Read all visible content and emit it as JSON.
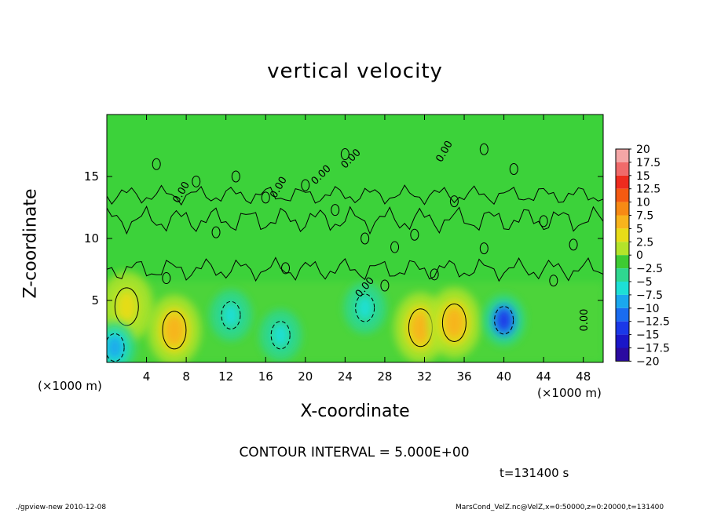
{
  "chart_data": {
    "type": "heatmap",
    "title": "vertical velocity",
    "xlabel": "X-coordinate",
    "ylabel": "Z-coordinate",
    "x_unit": "(×1000 m)",
    "xlim": [
      0,
      50
    ],
    "ylim": [
      0,
      20
    ],
    "xticks": [
      4,
      8,
      12,
      16,
      20,
      24,
      28,
      32,
      36,
      40,
      44,
      48
    ],
    "yticks": [
      5,
      10,
      15
    ],
    "colorbar": {
      "levels": [
        "20",
        "17.5",
        "15",
        "12.5",
        "10",
        "7.5",
        "5",
        "2.5",
        "0",
        "−2.5",
        "−5",
        "−7.5",
        "−10",
        "−12.5",
        "−15",
        "−17.5",
        "−20"
      ],
      "colors": [
        "#f4a6a6",
        "#f06a6a",
        "#ee2b1e",
        "#f45a12",
        "#f78a14",
        "#f8b41c",
        "#e8dc18",
        "#b4e42a",
        "#3ecb33",
        "#2fd790",
        "#1de0d6",
        "#1aa8ee",
        "#1a6cf0",
        "#1a38e8",
        "#1a16c8",
        "#2a0aa0",
        "#6a16a8"
      ]
    },
    "contour_interval": "CONTOUR INTERVAL = 5.000E+00",
    "contour_label": "0.00",
    "features": [
      {
        "x": 2.0,
        "z": 4.5,
        "w": 5.0
      },
      {
        "x": 6.8,
        "z": 2.6,
        "w": 7.5
      },
      {
        "x": 12.5,
        "z": 3.8,
        "w": -5.0
      },
      {
        "x": 17.5,
        "z": 2.2,
        "w": -5.0
      },
      {
        "x": 26.0,
        "z": 4.4,
        "w": -5.0
      },
      {
        "x": 31.6,
        "z": 2.8,
        "w": 8.0
      },
      {
        "x": 35.0,
        "z": 3.2,
        "w": 7.0
      },
      {
        "x": 40.0,
        "z": 3.4,
        "w": -12.0
      },
      {
        "x": 0.8,
        "z": 1.2,
        "w": -7.0
      }
    ]
  },
  "x_unit_right": "(×1000 m)",
  "time": "t=131400 s",
  "footer_left": "./gpview-new  2010-12-08",
  "footer_right": "MarsCond_VelZ.nc@VelZ,x=0:50000,z=0:20000,t=131400"
}
